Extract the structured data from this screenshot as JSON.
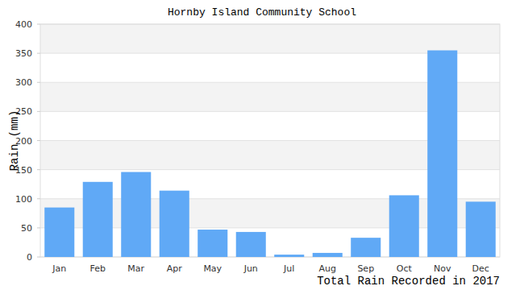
{
  "chart_data": {
    "type": "bar",
    "title": "Hornby Island Community School",
    "y_label": "Rain (mm)",
    "x_label": "Total Rain Recorded in 2017",
    "categories": [
      "Jan",
      "Feb",
      "Mar",
      "Apr",
      "May",
      "Jun",
      "Jul",
      "Aug",
      "Sep",
      "Oct",
      "Nov",
      "Dec"
    ],
    "values": [
      85,
      129,
      146,
      114,
      47,
      43,
      4,
      7,
      33,
      106,
      355,
      95
    ],
    "color": "#60a9f6",
    "ylim": [
      0,
      400
    ],
    "yticks": [
      0,
      50,
      100,
      150,
      200,
      250,
      300,
      350,
      400
    ],
    "grid": true
  }
}
